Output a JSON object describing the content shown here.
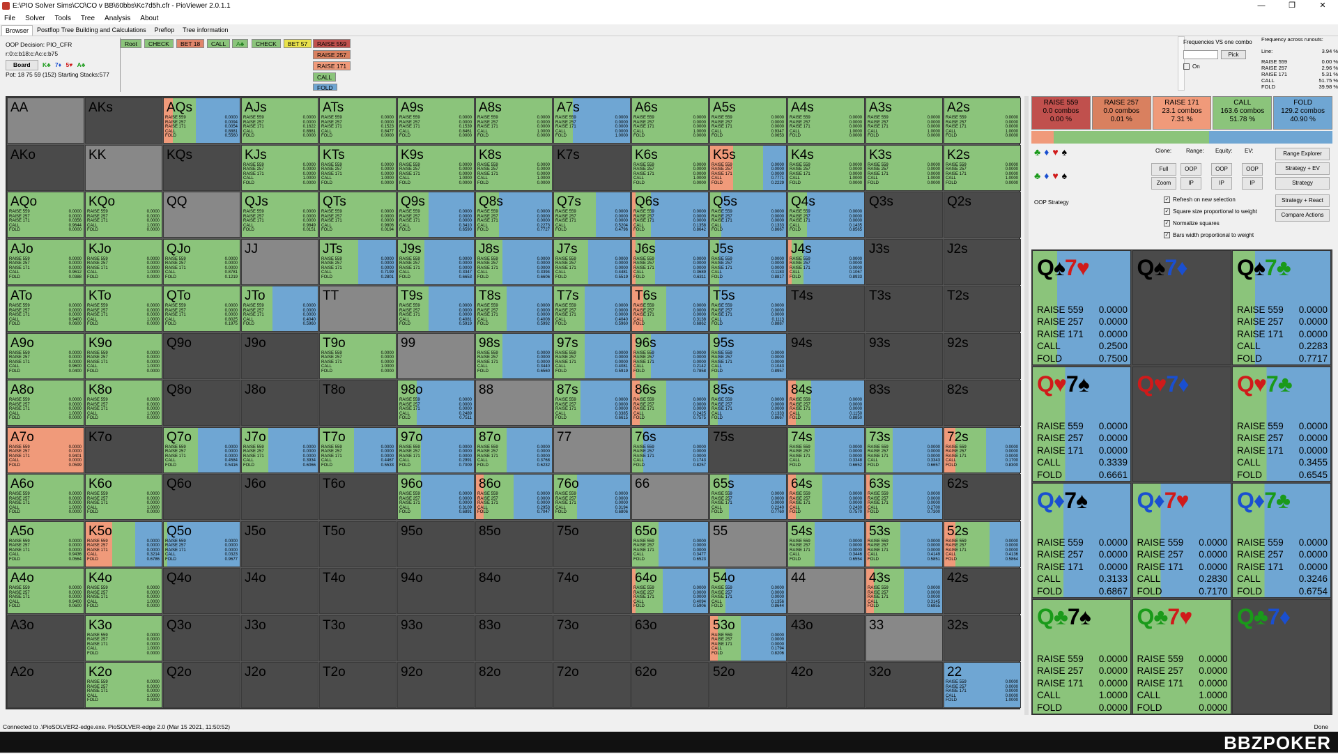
{
  "window": {
    "title": "E:\\PIO Solver Sims\\CO\\CO v BB\\60bbs\\Kc7d5h.cfr - PioViewer 2.0.1.1",
    "ctl": [
      "—",
      "❐",
      "✕"
    ]
  },
  "menu": [
    "File",
    "Solver",
    "Tools",
    "Tree",
    "Analysis",
    "About"
  ],
  "tabs": [
    "Browser",
    "Postflop Tree Building and Calculations",
    "Preflop",
    "Tree information"
  ],
  "oop": {
    "decision": "OOP Decision:  PIO_CFR",
    "line": "r:0:c:b18:c:Ac:c:b75",
    "board_label": "Board",
    "board_cards": [
      "K♣",
      "7♦",
      "5♥",
      "A♣"
    ],
    "pot": "Pot: 18 75 59 (152) Starting Stacks:577"
  },
  "tree": {
    "root": "Root",
    "check": "CHECK",
    "bet18": "BET 18",
    "call": "CALL",
    "ace": "A♣",
    "check2": "CHECK",
    "bet57": "BET 57",
    "opts": [
      "RAISE 559",
      "RAISE 257",
      "RAISE 171",
      "CALL",
      "FOLD"
    ]
  },
  "topright": {
    "freq_label": "Frequencies VS one combo",
    "pick": "Pick",
    "on": "On",
    "runouts_label": "Frequency across runouts:",
    "line_label": "Line:",
    "line_val": "3.94 %"
  },
  "freqlist": [
    [
      "RAISE 559",
      "0.00 %"
    ],
    [
      "RAISE 257",
      "2.96 %"
    ],
    [
      "RAISE 171",
      "5.31 %"
    ],
    [
      "CALL",
      "51.75 %"
    ],
    [
      "FOLD",
      "39.98 %"
    ]
  ],
  "colors": {
    "r559": "#c0504d",
    "r257": "#e0856a",
    "r171": "#f09a7a",
    "call": "#8bc47b",
    "fold": "#6fa6d3",
    "empty": "#4a4a4a",
    "pair": "#888888"
  },
  "summary": [
    {
      "label": "RAISE 559",
      "combos": "0.0 combos",
      "pct": "0.00 %",
      "color": "#c0504d"
    },
    {
      "label": "RAISE 257",
      "combos": "0.0 combos",
      "pct": "0.01 %",
      "color": "#d9805f"
    },
    {
      "label": "RAISE 171",
      "combos": "23.1 combos",
      "pct": "7.31 %",
      "color": "#f09a7a"
    },
    {
      "label": "CALL",
      "combos": "163.6 combos",
      "pct": "51.78 %",
      "color": "#8bc47b"
    },
    {
      "label": "FOLD",
      "combos": "129.2 combos",
      "pct": "40.90 %",
      "color": "#6fa6d3"
    }
  ],
  "sumbar_pct": {
    "r171": 7.31,
    "call": 51.78,
    "fold": 40.9
  },
  "controls": {
    "clone": "Clone:",
    "range": "Range:",
    "equity": "Equity:",
    "ev": "EV:",
    "full": "Full",
    "zoom": "Zoom",
    "oop": "OOP",
    "ip": "IP",
    "range_explorer": "Range Explorer",
    "strat_ev": "Strategy + EV",
    "strategy": "Strategy",
    "strat_react": "Strategy + React",
    "compare": "Compare Actions",
    "oop_strategy": "OOP Strategy",
    "checks": [
      "Refresh on new selection",
      "Square size proportional to weight",
      "Normalize squares",
      "Bars width proportional to weight"
    ]
  },
  "row_labels": [
    "RAISE 559",
    "RAISE 257",
    "RAISE 171",
    "CALL",
    "FOLD"
  ],
  "grid": [
    [
      [
        "AA",
        0,
        0,
        ""
      ],
      [
        "AKs",
        0,
        0,
        ""
      ],
      [
        "AQs",
        0.12,
        0.3,
        "0.0000|0.0094|0.0054|0.8881|0.5560"
      ],
      [
        "AJs",
        0,
        1,
        "0.0000|0.0000|0.1622|0.8881|0.0000"
      ],
      [
        "ATs",
        0,
        1,
        "0.0000|0.0000|0.1523|0.8477|0.0000"
      ],
      [
        "A9s",
        0,
        1,
        "0.0000|0.0000|0.1539|0.8461|0.0000"
      ],
      [
        "A8s",
        0,
        1,
        "0.0000|0.0000|0.0000|1.0000|0.0000"
      ],
      [
        "A7s",
        0,
        0.25,
        "0.0000|0.0000|0.0000|0.0000|1.0000"
      ],
      [
        "A6s",
        0,
        1,
        "0.0000|0.0000|0.0000|1.0000|0.0000"
      ],
      [
        "A5s",
        0,
        1,
        "0.0000|0.0000|0.0000|0.9347|0.0653"
      ],
      [
        "A4s",
        0,
        1,
        "0.0000|0.0000|0.0000|1.0000|0.0000"
      ],
      [
        "A3s",
        0,
        1,
        "0.0000|0.0000|0.0000|1.0000|0.0000"
      ],
      [
        "A2s",
        0,
        1,
        "0.0000|0.0000|0.0000|1.0000|0.0000"
      ]
    ],
    [
      [
        "AKo",
        0,
        0,
        ""
      ],
      [
        "KK",
        0,
        0,
        ""
      ],
      [
        "KQs",
        0,
        0,
        ""
      ],
      [
        "KJs",
        0,
        1,
        "0.0000|0.0000|0.0000|1.0000|0.0000"
      ],
      [
        "KTs",
        0,
        1,
        "0.0000|0.0000|0.0000|1.0000|0.0000"
      ],
      [
        "K9s",
        0,
        1,
        "0.0000|0.0000|0.0000|1.0000|0.0000"
      ],
      [
        "K8s",
        0,
        1,
        "0.0000|0.0000|0.0000|1.0000|0.0000"
      ],
      [
        "K7s",
        0,
        0,
        ""
      ],
      [
        "K6s",
        0,
        1,
        "0.0000|0.0000|0.0000|1.0000|0.0000"
      ],
      [
        "K5s",
        0.3,
        0.4,
        "0.0000|0.0000|0.0000|0.7771|0.2229"
      ],
      [
        "K4s",
        0,
        1,
        "0.0000|0.0000|0.0000|1.0000|0.0000"
      ],
      [
        "K3s",
        0,
        1,
        "0.0000|0.0000|0.0000|1.0000|0.0000"
      ],
      [
        "K2s",
        0,
        1,
        "0.0000|0.0000|0.0000|1.0000|0.0000"
      ]
    ],
    [
      [
        "AQo",
        0,
        1,
        "0.0000|0.0000|0.0356|0.9644|0.0000"
      ],
      [
        "KQo",
        0,
        1,
        "0.0000|0.0000|0.0000|1.0000|0.0000"
      ],
      [
        "QQ",
        0,
        0,
        ""
      ],
      [
        "QJs",
        0,
        1,
        "0.0000|0.0000|0.0000|0.9849|0.0151"
      ],
      [
        "QTs",
        0,
        1,
        "0.0000|0.0000|0.0000|0.9806|0.0194"
      ],
      [
        "Q9s",
        0,
        0.4,
        "0.0000|0.0000|0.0000|0.3410|0.6590"
      ],
      [
        "Q8s",
        0,
        0.3,
        "0.0000|0.0000|0.0000|0.2273|0.7727"
      ],
      [
        "Q7s",
        0,
        0.55,
        "0.0000|0.0000|0.0000|0.5204|0.4796"
      ],
      [
        "Q6s",
        0.05,
        0.2,
        "0.0000|0.0000|0.0000|0.1358|0.8642"
      ],
      [
        "Q5s",
        0,
        0.15,
        "0.0000|0.0000|0.0000|0.1333|0.8667"
      ],
      [
        "Q4s",
        0,
        0.25,
        "0.0000|0.0000|0.0000|0.1435|0.8565"
      ],
      [
        "Q3s",
        0,
        0,
        ""
      ],
      [
        "Q2s",
        0,
        0,
        ""
      ]
    ],
    [
      [
        "AJo",
        0,
        1,
        "0.0000|0.0000|0.0000|0.9612|0.0388"
      ],
      [
        "KJo",
        0,
        1,
        "0.0000|0.0000|0.0000|1.0000|0.0000"
      ],
      [
        "QJo",
        0,
        1,
        "0.0000|0.0000|0.0000|0.8781|0.1219"
      ],
      [
        "JJ",
        0,
        0,
        ""
      ],
      [
        "JTs",
        0,
        0.5,
        "0.0000|0.0000|0.0000|0.7199|0.2801"
      ],
      [
        "J9s",
        0,
        0.35,
        "0.0000|0.0000|0.0000|0.3347|0.6653"
      ],
      [
        "J8s",
        0,
        0.35,
        "0.0000|0.0000|0.0000|0.3394|0.6606"
      ],
      [
        "J7s",
        0,
        0.45,
        "0.0000|0.0000|0.0000|0.4481|0.5519"
      ],
      [
        "J6s",
        0.05,
        0.25,
        "0.0000|0.0000|0.0000|0.3689|0.6311"
      ],
      [
        "J5s",
        0,
        0.12,
        "0.0000|0.0000|0.0000|0.1183|0.8817"
      ],
      [
        "J4s",
        0.05,
        0.15,
        "0.0000|0.0000|0.0000|0.1067|0.8933"
      ],
      [
        "J3s",
        0,
        0,
        ""
      ],
      [
        "J2s",
        0,
        0,
        ""
      ]
    ],
    [
      [
        "ATo",
        0,
        1,
        "0.0000|0.0000|0.0000|0.9400|0.0600"
      ],
      [
        "KTo",
        0,
        1,
        "0.0000|0.0000|0.0000|1.0000|0.0000"
      ],
      [
        "QTo",
        0,
        1,
        "0.0000|0.0000|0.0000|0.8025|0.1975"
      ],
      [
        "JTo",
        0,
        0.4,
        "0.0000|0.0000|0.0000|0.4040|0.5960"
      ],
      [
        "TT",
        0,
        0,
        ""
      ],
      [
        "T9s",
        0,
        0.4,
        "0.0000|0.0000|0.0000|0.4081|0.5919"
      ],
      [
        "T8s",
        0,
        0.4,
        "0.0000|0.0000|0.0000|0.4008|0.5992"
      ],
      [
        "T7s",
        0,
        0.4,
        "0.0000|0.0000|0.0000|0.4040|0.5960"
      ],
      [
        "T6s",
        0.15,
        0.3,
        "0.0000|0.0000|0.0000|0.3138|0.6862"
      ],
      [
        "T5s",
        0,
        0.12,
        "0.0000|0.0000|0.0000|0.1113|0.8887"
      ],
      [
        "T4s",
        0,
        0,
        ""
      ],
      [
        "T3s",
        0,
        0,
        ""
      ],
      [
        "T2s",
        0,
        0,
        ""
      ]
    ],
    [
      [
        "A9o",
        0,
        1,
        "0.0000|0.0000|0.0000|0.9600|0.0400"
      ],
      [
        "K9o",
        0,
        1,
        "0.0000|0.0000|0.0000|1.0000|0.0000"
      ],
      [
        "Q9o",
        0,
        0,
        ""
      ],
      [
        "J9o",
        0,
        0,
        ""
      ],
      [
        "T9o",
        0,
        1,
        "0.0000|0.0000|0.0000|1.0000|0.0000"
      ],
      [
        "99",
        0,
        0,
        ""
      ],
      [
        "98s",
        0,
        0.35,
        "0.0000|0.0000|0.0000|0.3440|0.6560"
      ],
      [
        "97s",
        0,
        0.4,
        "0.0000|0.0000|0.0000|0.4081|0.5919"
      ],
      [
        "96s",
        0.05,
        0.2,
        "0.0000|0.0000|0.0000|0.2142|0.7858"
      ],
      [
        "95s",
        0,
        0.1,
        "0.0000|0.0000|0.0000|0.1043|0.8957"
      ],
      [
        "94s",
        0,
        0,
        ""
      ],
      [
        "93s",
        0,
        0,
        ""
      ],
      [
        "92s",
        0,
        0,
        ""
      ]
    ],
    [
      [
        "A8o",
        0,
        1,
        "0.0000|0.0000|0.0000|1.0000|0.0000"
      ],
      [
        "K8o",
        0,
        1,
        "0.0000|0.0000|0.0000|1.0000|0.0000"
      ],
      [
        "Q8o",
        0,
        0,
        ""
      ],
      [
        "J8o",
        0,
        0,
        ""
      ],
      [
        "T8o",
        0,
        0,
        ""
      ],
      [
        "98o",
        0,
        0.25,
        "0.0000|0.0000|0.0000|0.2489|0.7511"
      ],
      [
        "88",
        0,
        0,
        ""
      ],
      [
        "87s",
        0,
        0.35,
        "0.0000|0.0000|0.0000|0.3385|0.6615"
      ],
      [
        "86s",
        0.1,
        0.35,
        "0.0000|0.0000|0.0000|0.2425|0.7575"
      ],
      [
        "85s",
        0,
        0.1,
        "0.0000|0.0000|0.0000|0.1333|0.8667"
      ],
      [
        "84s",
        0.1,
        0.2,
        "0.0000|0.0000|0.0000|0.1150|0.8850"
      ],
      [
        "83s",
        0,
        0,
        ""
      ],
      [
        "82s",
        0,
        0,
        ""
      ]
    ],
    [
      [
        "A7o",
        1,
        0,
        "0.0000|0.0000|0.9401|0.0000|0.0599"
      ],
      [
        "K7o",
        0,
        0,
        ""
      ],
      [
        "Q7o",
        0,
        0.45,
        "0.0000|0.0000|0.0000|0.4584|0.5416"
      ],
      [
        "J7o",
        0,
        0.35,
        "0.0000|0.0000|0.0000|0.3934|0.6066"
      ],
      [
        "T7o",
        0,
        0.45,
        "0.0000|0.0000|0.0000|0.4467|0.5533"
      ],
      [
        "97o",
        0,
        0.3,
        "0.0000|0.0000|0.0000|0.2991|0.7009"
      ],
      [
        "87o",
        0,
        0.4,
        "0.0000|0.0000|0.0000|0.3768|0.6232"
      ],
      [
        "77",
        0,
        0,
        ""
      ],
      [
        "76s",
        0,
        0.15,
        "0.0000|0.0000|0.0000|0.1743|0.8257"
      ],
      [
        "75s",
        0,
        0,
        ""
      ],
      [
        "74s",
        0,
        0.35,
        "0.0000|0.0000|0.0000|0.3348|0.6652"
      ],
      [
        "73s",
        0,
        0.35,
        "0.0000|0.0000|0.0000|0.3343|0.6657"
      ],
      [
        "72s",
        0.15,
        0.4,
        "0.0000|0.0000|0.0000|0.1700|0.8300"
      ]
    ],
    [
      [
        "A6o",
        0,
        1,
        "0.0000|0.0000|0.0000|1.0000|0.0000"
      ],
      [
        "K6o",
        0,
        1,
        "0.0000|0.0000|0.0000|1.0000|0.0000"
      ],
      [
        "Q6o",
        0,
        0,
        ""
      ],
      [
        "J6o",
        0,
        0,
        ""
      ],
      [
        "T6o",
        0,
        0,
        ""
      ],
      [
        "96o",
        0,
        0.3,
        "0.0000|0.0000|0.0000|0.3109|0.6891"
      ],
      [
        "86o",
        0.1,
        0.4,
        "0.0000|0.0000|0.0000|0.2953|0.7047"
      ],
      [
        "76o",
        0,
        0.3,
        "0.0000|0.0000|0.0000|0.3194|0.6806"
      ],
      [
        "66",
        0,
        0,
        ""
      ],
      [
        "65s",
        0,
        0.25,
        "0.0000|0.0000|0.0000|0.2240|0.7760"
      ],
      [
        "64s",
        0.1,
        0.35,
        "0.0000|0.0000|0.0000|0.2430|0.7570"
      ],
      [
        "63s",
        0.05,
        0.3,
        "0.0000|0.0000|0.0000|0.2700|0.7300"
      ],
      [
        "62s",
        0,
        0,
        ""
      ]
    ],
    [
      [
        "A5o",
        0,
        1,
        "0.0000|0.0000|0.0000|0.9436|0.0564"
      ],
      [
        "K5o",
        0.35,
        0.3,
        "0.0000|0.0000|0.0000|0.3214|0.6786"
      ],
      [
        "Q5o",
        0,
        0.05,
        "0.0000|0.0000|0.0000|0.0323|0.9677"
      ],
      [
        "J5o",
        0,
        0,
        ""
      ],
      [
        "T5o",
        0,
        0,
        ""
      ],
      [
        "95o",
        0,
        0,
        ""
      ],
      [
        "85o",
        0,
        0,
        ""
      ],
      [
        "75o",
        0,
        0,
        ""
      ],
      [
        "65o",
        0,
        0.35,
        "0.0000|0.0000|0.0000|0.3477|0.6523"
      ],
      [
        "55",
        0,
        0,
        ""
      ],
      [
        "54s",
        0,
        0.35,
        "0.0000|0.0000|0.0000|0.3446|0.6554"
      ],
      [
        "53s",
        0.05,
        0.4,
        "0.0000|0.0000|0.0000|0.4149|0.5851"
      ],
      [
        "52s",
        0.15,
        0.45,
        "0.0000|0.0000|0.0000|0.4136|0.5864"
      ]
    ],
    [
      [
        "A4o",
        0,
        1,
        "0.0000|0.0000|0.0000|0.9400|0.0600"
      ],
      [
        "K4o",
        0,
        1,
        "0.0000|0.0000|0.0000|1.0000|0.0000"
      ],
      [
        "Q4o",
        0,
        0,
        ""
      ],
      [
        "J4o",
        0,
        0,
        ""
      ],
      [
        "T4o",
        0,
        0,
        ""
      ],
      [
        "94o",
        0,
        0,
        ""
      ],
      [
        "84o",
        0,
        0,
        ""
      ],
      [
        "74o",
        0,
        0,
        ""
      ],
      [
        "64o",
        0.05,
        0.35,
        "0.0000|0.0000|0.0000|0.4094|0.5906"
      ],
      [
        "54o",
        0,
        0.2,
        "0.0000|0.0000|0.0000|0.1356|0.8644"
      ],
      [
        "44",
        0,
        0,
        ""
      ],
      [
        "43s",
        0.1,
        0.4,
        "0.0000|0.0000|0.0000|0.3145|0.6855"
      ],
      [
        "42s",
        0,
        0,
        ""
      ]
    ],
    [
      [
        "A3o",
        0,
        0,
        ""
      ],
      [
        "K3o",
        0,
        1,
        "0.0000|0.0000|0.0000|1.0000|0.0000"
      ],
      [
        "Q3o",
        0,
        0,
        ""
      ],
      [
        "J3o",
        0,
        0,
        ""
      ],
      [
        "T3o",
        0,
        0,
        ""
      ],
      [
        "93o",
        0,
        0,
        ""
      ],
      [
        "83o",
        0,
        0,
        ""
      ],
      [
        "73o",
        0,
        0,
        ""
      ],
      [
        "63o",
        0,
        0,
        ""
      ],
      [
        "53o",
        0.1,
        0.3,
        "0.0000|0.0000|0.0000|0.1794|0.8206"
      ],
      [
        "43o",
        0,
        0,
        ""
      ],
      [
        "33",
        0,
        0,
        ""
      ],
      [
        "32s",
        0,
        0,
        ""
      ]
    ],
    [
      [
        "A2o",
        0,
        0,
        ""
      ],
      [
        "K2o",
        0,
        1,
        "0.0000|0.0000|0.0000|1.0000|0.0000"
      ],
      [
        "Q2o",
        0,
        0,
        ""
      ],
      [
        "J2o",
        0,
        0,
        ""
      ],
      [
        "T2o",
        0,
        0,
        ""
      ],
      [
        "92o",
        0,
        0,
        ""
      ],
      [
        "82o",
        0,
        0,
        ""
      ],
      [
        "72o",
        0,
        0,
        ""
      ],
      [
        "62o",
        0,
        0,
        ""
      ],
      [
        "52o",
        0,
        0,
        ""
      ],
      [
        "42o",
        0,
        0,
        ""
      ],
      [
        "32o",
        0,
        0,
        ""
      ],
      [
        "22",
        0,
        0,
        "0.0000|0.0000|0.0000|0.0000|1.0000"
      ]
    ]
  ],
  "combos": [
    {
      "r1": "Q",
      "s1": "♠",
      "r2": "7",
      "s2": "♥",
      "vals": [
        "0.0000",
        "0.0000",
        "0.0000",
        "0.2500",
        "0.7500"
      ]
    },
    {
      "r1": "Q",
      "s1": "♠",
      "r2": "7",
      "s2": "♦",
      "vals": null
    },
    {
      "r1": "Q",
      "s1": "♠",
      "r2": "7",
      "s2": "♣",
      "vals": [
        "0.0000",
        "0.0000",
        "0.0000",
        "0.2283",
        "0.7717"
      ]
    },
    {
      "r1": "Q",
      "s1": "♥",
      "r2": "7",
      "s2": "♠",
      "vals": [
        "0.0000",
        "0.0000",
        "0.0000",
        "0.3339",
        "0.6661"
      ]
    },
    {
      "r1": "Q",
      "s1": "♥",
      "r2": "7",
      "s2": "♦",
      "vals": null
    },
    {
      "r1": "Q",
      "s1": "♥",
      "r2": "7",
      "s2": "♣",
      "vals": [
        "0.0000",
        "0.0000",
        "0.0000",
        "0.3455",
        "0.6545"
      ]
    },
    {
      "r1": "Q",
      "s1": "♦",
      "r2": "7",
      "s2": "♠",
      "vals": [
        "0.0000",
        "0.0000",
        "0.0000",
        "0.3133",
        "0.6867"
      ]
    },
    {
      "r1": "Q",
      "s1": "♦",
      "r2": "7",
      "s2": "♥",
      "vals": [
        "0.0000",
        "0.0000",
        "0.0000",
        "0.2830",
        "0.7170"
      ]
    },
    {
      "r1": "Q",
      "s1": "♦",
      "r2": "7",
      "s2": "♣",
      "vals": [
        "0.0000",
        "0.0000",
        "0.0000",
        "0.3246",
        "0.6754"
      ]
    },
    {
      "r1": "Q",
      "s1": "♣",
      "r2": "7",
      "s2": "♠",
      "vals": [
        "0.0000",
        "0.0000",
        "0.0000",
        "1.0000",
        "0.0000"
      ]
    },
    {
      "r1": "Q",
      "s1": "♣",
      "r2": "7",
      "s2": "♥",
      "vals": [
        "0.0000",
        "0.0000",
        "0.0000",
        "1.0000",
        "0.0000"
      ]
    },
    {
      "r1": "Q",
      "s1": "♣",
      "r2": "7",
      "s2": "♦",
      "vals": null
    }
  ],
  "status": {
    "text": "Connected to .\\PioSOLVER2-edge.exe. PioSOLVER-edge 2.0 (Mar 15 2021, 11:50:52)",
    "done": "Done"
  },
  "logo": "BBZPOKER"
}
